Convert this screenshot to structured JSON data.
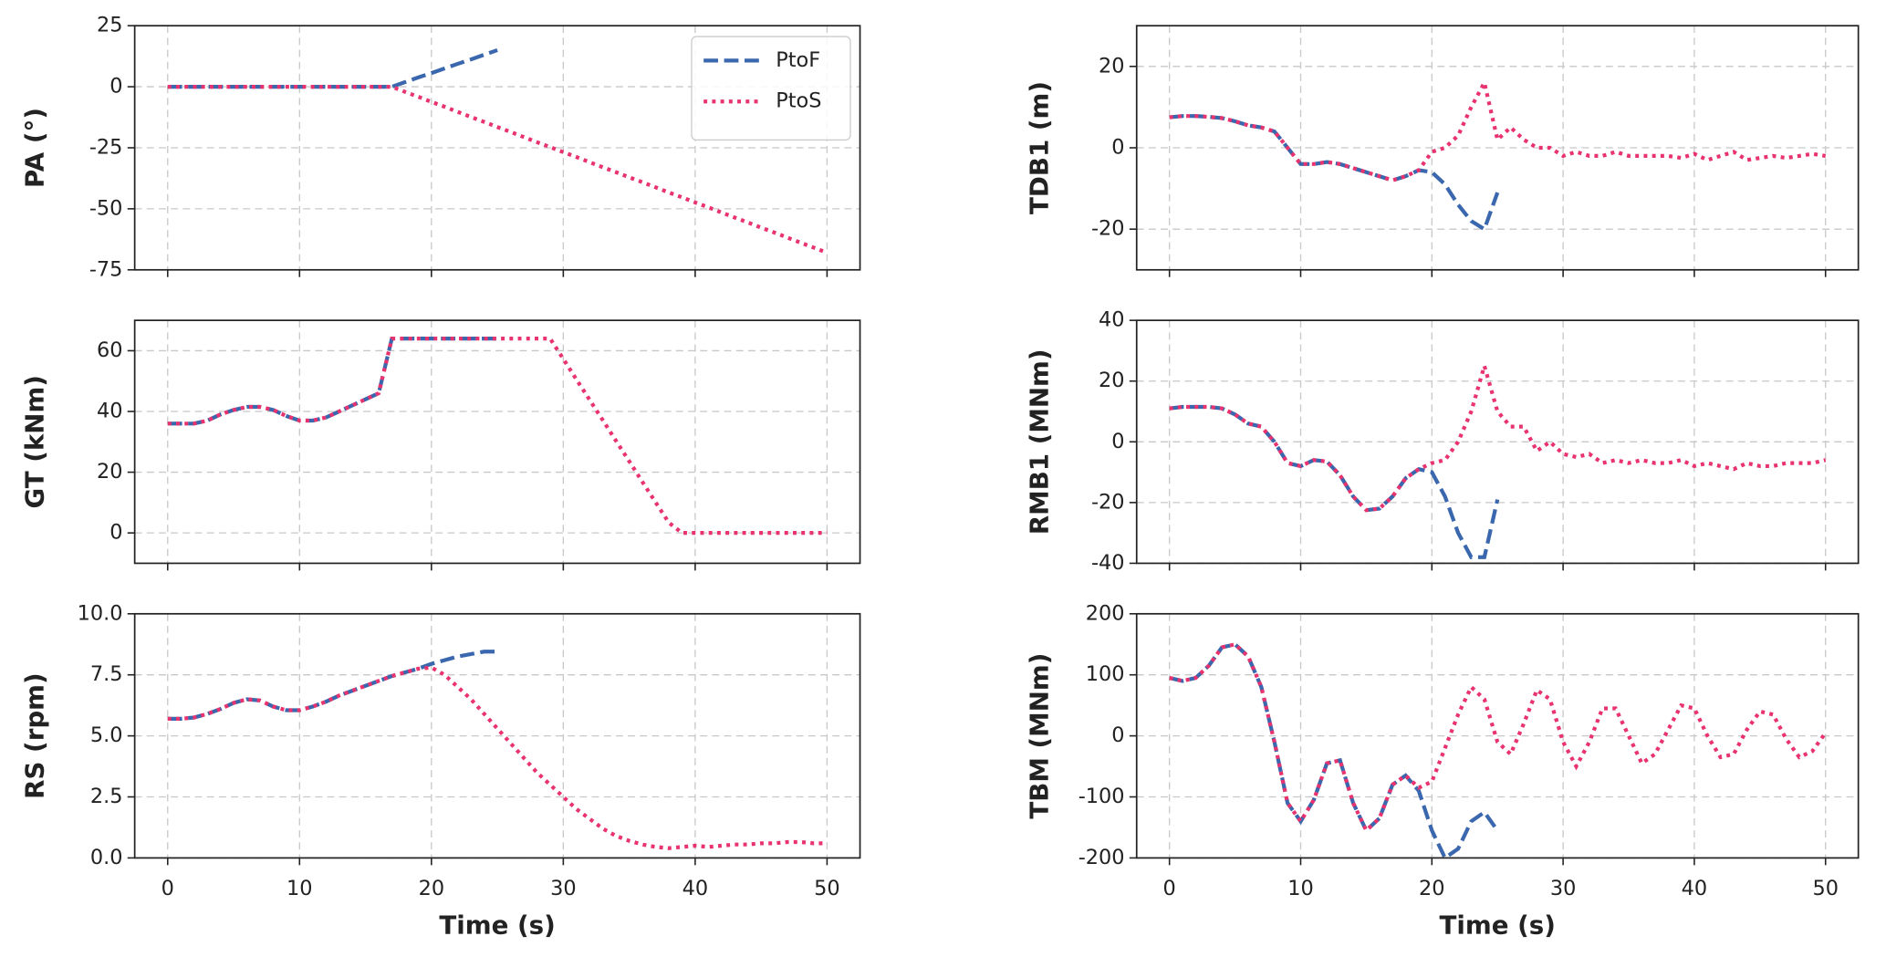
{
  "chart_data": [
    {
      "type": "line",
      "ylabel": "PA (°)",
      "xlim": [
        -2.5,
        52.5
      ],
      "xticks": [
        0,
        10,
        20,
        30,
        40,
        50
      ],
      "xtick_labels": false,
      "ylim": [
        -75,
        25
      ],
      "yticks": [
        25,
        0,
        -25,
        -50,
        -75
      ],
      "grid": true,
      "legend": "upper right",
      "x": [
        0,
        1,
        2,
        3,
        4,
        5,
        6,
        7,
        8,
        9,
        10,
        11,
        12,
        13,
        14,
        15,
        16,
        17,
        18,
        19,
        20,
        21,
        22,
        23,
        24,
        25,
        26,
        27,
        28,
        29,
        30,
        31,
        32,
        33,
        34,
        35,
        36,
        37,
        38,
        39,
        40,
        41,
        42,
        43,
        44,
        45,
        46,
        47,
        48,
        49,
        50
      ],
      "series": [
        {
          "name": "PtoF",
          "color": "#3a67ad",
          "dash": "dashed",
          "values": [
            0,
            0,
            0,
            0,
            0,
            0,
            0,
            0,
            0,
            0,
            0,
            0,
            0,
            0,
            0,
            0,
            0,
            0,
            1.9,
            3.8,
            5.6,
            7.5,
            9.4,
            11.2,
            13.1,
            15,
            null,
            null,
            null,
            null,
            null,
            null,
            null,
            null,
            null,
            null,
            null,
            null,
            null,
            null,
            null,
            null,
            null,
            null,
            null,
            null,
            null,
            null,
            null,
            null,
            null
          ]
        },
        {
          "name": "PtoS",
          "color": "#e8336f",
          "dash": "dotted",
          "values": [
            0,
            0,
            0,
            0,
            0,
            0,
            0,
            0,
            0,
            0,
            0,
            0,
            0,
            0,
            0,
            0,
            0,
            0,
            -2.1,
            -4.1,
            -6.2,
            -8.2,
            -10.3,
            -12.4,
            -14.4,
            -16.5,
            -18.5,
            -20.6,
            -22.7,
            -24.7,
            -26.8,
            -28.8,
            -30.9,
            -33,
            -35,
            -37.1,
            -39.1,
            -41.2,
            -43.3,
            -45.3,
            -47.4,
            -49.4,
            -51.5,
            -53.6,
            -55.6,
            -57.7,
            -59.7,
            -61.8,
            -63.9,
            -65.9,
            -68
          ]
        }
      ]
    },
    {
      "type": "line",
      "ylabel": "TDB1 (m)",
      "xlim": [
        -2.5,
        52.5
      ],
      "xticks": [
        0,
        10,
        20,
        30,
        40,
        50
      ],
      "xtick_labels": false,
      "ylim": [
        -30,
        30
      ],
      "yticks": [
        20,
        0,
        -20
      ],
      "grid": true,
      "x": [
        0,
        1,
        2,
        3,
        4,
        5,
        6,
        7,
        8,
        9,
        10,
        11,
        12,
        13,
        14,
        15,
        16,
        17,
        18,
        19,
        20,
        21,
        22,
        23,
        24,
        25,
        26,
        27,
        28,
        29,
        30,
        31,
        32,
        33,
        34,
        35,
        36,
        37,
        38,
        39,
        40,
        41,
        42,
        43,
        44,
        45,
        46,
        47,
        48,
        49,
        50
      ],
      "series": [
        {
          "color": "#3a67ad",
          "dash": "dashed",
          "values": [
            7.5,
            7.8,
            7.8,
            7.6,
            7.3,
            6.5,
            5.5,
            5,
            4,
            0,
            -4,
            -4,
            -3.5,
            -4,
            -5,
            -6,
            -7,
            -8,
            -7,
            -5.5,
            -6,
            -9,
            -14,
            -18,
            -20,
            -11,
            null,
            null,
            null,
            null,
            null,
            null,
            null,
            null,
            null,
            null,
            null,
            null,
            null,
            null,
            null,
            null,
            null,
            null,
            null,
            null,
            null,
            null,
            null,
            null,
            null
          ]
        },
        {
          "color": "#e8336f",
          "dash": "dotted",
          "values": [
            7.5,
            7.8,
            7.8,
            7.6,
            7.3,
            6.5,
            5.5,
            5,
            4,
            0,
            -4,
            -4,
            -3.5,
            -4,
            -5,
            -6,
            -7,
            -8,
            -7,
            -5.5,
            -1,
            0,
            3,
            10,
            16,
            2,
            5,
            2,
            0,
            0,
            -2,
            -1,
            -2,
            -2,
            -1,
            -2,
            -2,
            -2,
            -2,
            -2.5,
            -1.5,
            -3,
            -2,
            -1,
            -3,
            -2.5,
            -2,
            -2.5,
            -2,
            -1.5,
            -2
          ]
        }
      ]
    },
    {
      "type": "line",
      "ylabel": "GT (kNm)",
      "xlim": [
        -2.5,
        52.5
      ],
      "xticks": [
        0,
        10,
        20,
        30,
        40,
        50
      ],
      "xtick_labels": false,
      "ylim": [
        -10,
        70
      ],
      "yticks": [
        60,
        40,
        20,
        0
      ],
      "grid": true,
      "x": [
        0,
        1,
        2,
        3,
        4,
        5,
        6,
        7,
        8,
        9,
        10,
        11,
        12,
        13,
        14,
        15,
        16,
        17,
        18,
        19,
        20,
        21,
        22,
        23,
        24,
        25,
        26,
        27,
        28,
        29,
        30,
        31,
        32,
        33,
        34,
        35,
        36,
        37,
        38,
        39,
        40,
        41,
        42,
        43,
        44,
        45,
        46,
        47,
        48,
        49,
        50
      ],
      "series": [
        {
          "color": "#3a67ad",
          "dash": "dashed",
          "values": [
            36,
            36,
            36,
            37,
            39,
            40.5,
            41.5,
            41.5,
            40.5,
            38.5,
            37,
            37,
            38,
            40,
            42,
            44,
            46,
            64,
            64,
            64,
            64,
            64,
            64,
            64,
            64,
            64,
            null,
            null,
            null,
            null,
            null,
            null,
            null,
            null,
            null,
            null,
            null,
            null,
            null,
            null,
            null,
            null,
            null,
            null,
            null,
            null,
            null,
            null,
            null,
            null,
            null
          ]
        },
        {
          "color": "#e8336f",
          "dash": "dotted",
          "values": [
            36,
            36,
            36,
            37,
            39,
            40.5,
            41.5,
            41.5,
            40.5,
            38.5,
            37,
            37,
            38,
            40,
            42,
            44,
            46,
            64,
            64,
            64,
            64,
            64,
            64,
            64,
            64,
            64,
            64,
            64,
            64,
            64,
            57.3,
            50.5,
            43.8,
            37.1,
            30.3,
            23.6,
            16.8,
            10.1,
            3.4,
            0,
            0,
            0,
            0,
            0,
            0,
            0,
            0,
            0,
            0,
            0,
            0
          ]
        }
      ]
    },
    {
      "type": "line",
      "ylabel": "RMB1 (MNm)",
      "xlim": [
        -2.5,
        52.5
      ],
      "xticks": [
        0,
        10,
        20,
        30,
        40,
        50
      ],
      "xtick_labels": false,
      "ylim": [
        -40,
        40
      ],
      "yticks": [
        40,
        20,
        0,
        -20,
        -40
      ],
      "grid": true,
      "x": [
        0,
        1,
        2,
        3,
        4,
        5,
        6,
        7,
        8,
        9,
        10,
        11,
        12,
        13,
        14,
        15,
        16,
        17,
        18,
        19,
        20,
        21,
        22,
        23,
        24,
        25,
        26,
        27,
        28,
        29,
        30,
        31,
        32,
        33,
        34,
        35,
        36,
        37,
        38,
        39,
        40,
        41,
        42,
        43,
        44,
        45,
        46,
        47,
        48,
        49,
        50
      ],
      "series": [
        {
          "color": "#3a67ad",
          "dash": "dashed",
          "values": [
            11,
            11.5,
            11.5,
            11.5,
            11,
            9,
            6,
            5,
            0,
            -7,
            -8,
            -6,
            -6.5,
            -11,
            -18,
            -22.5,
            -22,
            -18,
            -12,
            -9,
            -10,
            -18,
            -30,
            -38,
            -38,
            -19,
            null,
            null,
            null,
            null,
            null,
            null,
            null,
            null,
            null,
            null,
            null,
            null,
            null,
            null,
            null,
            null,
            null,
            null,
            null,
            null,
            null,
            null,
            null,
            null,
            null
          ]
        },
        {
          "color": "#e8336f",
          "dash": "dotted",
          "values": [
            11,
            11.5,
            11.5,
            11.5,
            11,
            9,
            6,
            5,
            0,
            -7,
            -8,
            -6,
            -6.5,
            -11,
            -18,
            -22.5,
            -22,
            -18,
            -12,
            -9,
            -7,
            -6,
            0,
            10,
            25,
            10,
            5,
            5,
            -3,
            0,
            -4,
            -5,
            -4,
            -7,
            -6,
            -7,
            -6,
            -7,
            -7,
            -6,
            -8,
            -7,
            -8,
            -9,
            -7,
            -8,
            -8,
            -7,
            -7,
            -7,
            -6
          ]
        }
      ]
    },
    {
      "type": "line",
      "ylabel": "RS (rpm)",
      "xlabel": "Time (s)",
      "xlim": [
        -2.5,
        52.5
      ],
      "xticks": [
        0,
        10,
        20,
        30,
        40,
        50
      ],
      "xtick_labels": true,
      "ylim": [
        0,
        10
      ],
      "yticks": [
        {
          "value": 10,
          "label": "10.0"
        },
        7.5,
        {
          "value": 5,
          "label": "5.0"
        },
        2.5,
        {
          "value": 0,
          "label": "0.0"
        }
      ],
      "grid": true,
      "x": [
        0,
        1,
        2,
        3,
        4,
        5,
        6,
        7,
        8,
        9,
        10,
        11,
        12,
        13,
        14,
        15,
        16,
        17,
        18,
        19,
        20,
        21,
        22,
        23,
        24,
        25,
        26,
        27,
        28,
        29,
        30,
        31,
        32,
        33,
        34,
        35,
        36,
        37,
        38,
        39,
        40,
        41,
        42,
        43,
        44,
        45,
        46,
        47,
        48,
        49,
        50
      ],
      "series": [
        {
          "color": "#3a67ad",
          "dash": "dashed",
          "values": [
            5.7,
            5.7,
            5.75,
            5.9,
            6.1,
            6.35,
            6.5,
            6.45,
            6.2,
            6.05,
            6.05,
            6.2,
            6.4,
            6.65,
            6.85,
            7.05,
            7.25,
            7.45,
            7.6,
            7.75,
            7.95,
            8.1,
            8.25,
            8.35,
            8.45,
            8.45,
            null,
            null,
            null,
            null,
            null,
            null,
            null,
            null,
            null,
            null,
            null,
            null,
            null,
            null,
            null,
            null,
            null,
            null,
            null,
            null,
            null,
            null,
            null,
            null,
            null
          ]
        },
        {
          "color": "#e8336f",
          "dash": "dotted",
          "values": [
            5.7,
            5.7,
            5.75,
            5.9,
            6.1,
            6.35,
            6.5,
            6.45,
            6.2,
            6.05,
            6.05,
            6.2,
            6.4,
            6.65,
            6.85,
            7.05,
            7.25,
            7.45,
            7.6,
            7.75,
            7.8,
            7.5,
            7,
            6.5,
            5.9,
            5.3,
            4.7,
            4.1,
            3.5,
            3,
            2.5,
            2,
            1.6,
            1.2,
            0.9,
            0.7,
            0.55,
            0.45,
            0.4,
            0.45,
            0.5,
            0.45,
            0.5,
            0.55,
            0.55,
            0.6,
            0.6,
            0.65,
            0.65,
            0.6,
            0.6
          ]
        }
      ]
    },
    {
      "type": "line",
      "ylabel": "TBM (MNm)",
      "xlabel": "Time (s)",
      "xlim": [
        -2.5,
        52.5
      ],
      "xticks": [
        0,
        10,
        20,
        30,
        40,
        50
      ],
      "xtick_labels": true,
      "ylim": [
        -200,
        200
      ],
      "yticks": [
        200,
        100,
        0,
        -100,
        -200
      ],
      "grid": true,
      "x": [
        0,
        1,
        2,
        3,
        4,
        5,
        6,
        7,
        8,
        9,
        10,
        11,
        12,
        13,
        14,
        15,
        16,
        17,
        18,
        19,
        20,
        21,
        22,
        23,
        24,
        25,
        26,
        27,
        28,
        29,
        30,
        31,
        32,
        33,
        34,
        35,
        36,
        37,
        38,
        39,
        40,
        41,
        42,
        43,
        44,
        45,
        46,
        47,
        48,
        49,
        50
      ],
      "series": [
        {
          "color": "#3a67ad",
          "dash": "dashed",
          "values": [
            95,
            90,
            95,
            115,
            145,
            150,
            130,
            80,
            -10,
            -110,
            -140,
            -105,
            -45,
            -40,
            -110,
            -155,
            -135,
            -80,
            -65,
            -90,
            -155,
            -200,
            -185,
            -140,
            -125,
            -155,
            null,
            null,
            null,
            null,
            null,
            null,
            null,
            null,
            null,
            null,
            null,
            null,
            null,
            null,
            null,
            null,
            null,
            null,
            null,
            null,
            null,
            null,
            null,
            null,
            null
          ]
        },
        {
          "color": "#e8336f",
          "dash": "dotted",
          "values": [
            95,
            90,
            95,
            115,
            145,
            150,
            130,
            80,
            -10,
            -110,
            -140,
            -105,
            -45,
            -40,
            -110,
            -155,
            -135,
            -80,
            -65,
            -85,
            -75,
            -20,
            35,
            80,
            60,
            -10,
            -30,
            20,
            75,
            60,
            -10,
            -50,
            -10,
            45,
            45,
            0,
            -45,
            -30,
            10,
            50,
            45,
            0,
            -35,
            -30,
            10,
            40,
            35,
            -5,
            -35,
            -25,
            5
          ]
        }
      ]
    }
  ]
}
